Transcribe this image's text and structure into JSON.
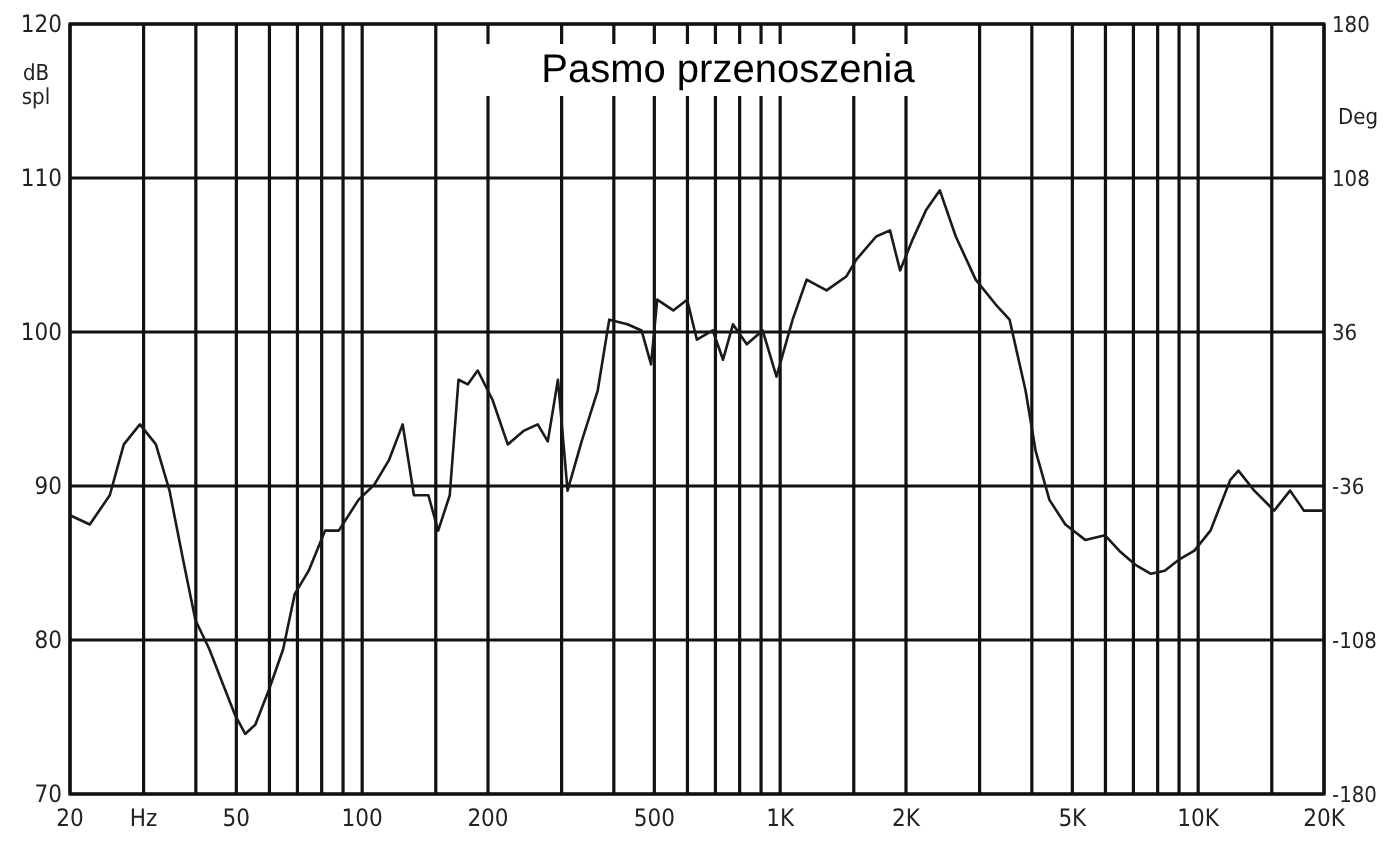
{
  "chart_data": {
    "type": "line",
    "title": "Pasmo przenoszenia",
    "ylabel": "dB spl",
    "y2label": "Deg",
    "log": "x",
    "grid": true,
    "xlim": [
      20,
      20000
    ],
    "ylim": [
      70,
      120
    ],
    "y2lim": [
      -180,
      180
    ],
    "xticks": [
      20,
      {
        "value": 30,
        "label": "Hz"
      },
      {
        "value": 40,
        "label": null
      },
      50,
      {
        "value": 60,
        "label": null
      },
      {
        "value": 70,
        "label": null
      },
      {
        "value": 80,
        "label": null
      },
      {
        "value": 90,
        "label": null
      },
      100,
      {
        "value": 150,
        "label": null
      },
      200,
      {
        "value": 300,
        "label": null
      },
      {
        "value": 400,
        "label": null
      },
      500,
      {
        "value": 600,
        "label": null
      },
      {
        "value": 700,
        "label": null
      },
      {
        "value": 800,
        "label": null
      },
      {
        "value": 900,
        "label": null
      },
      {
        "value": 1000,
        "label": "1K"
      },
      {
        "value": 1500,
        "label": null
      },
      {
        "value": 2000,
        "label": "2K"
      },
      {
        "value": 3000,
        "label": null
      },
      {
        "value": 4000,
        "label": null
      },
      {
        "value": 5000,
        "label": "5K"
      },
      {
        "value": 6000,
        "label": null
      },
      {
        "value": 7000,
        "label": null
      },
      {
        "value": 8000,
        "label": null
      },
      {
        "value": 9000,
        "label": null
      },
      {
        "value": 10000,
        "label": "10K"
      },
      {
        "value": 15000,
        "label": null
      },
      {
        "value": 20000,
        "label": "20K"
      }
    ],
    "yticks": [
      70,
      80,
      90,
      100,
      110,
      120
    ],
    "y2ticks": [
      -180,
      -108,
      -36,
      36,
      108,
      180
    ],
    "series": [
      {
        "color": "#1a1a1a",
        "x": [
          20,
          22.3,
          24.9,
          26.9,
          29.4,
          32.1,
          34.6,
          37.3,
          39.9,
          43.1,
          46.5,
          49.7,
          52.5,
          55.5,
          59.9,
          64.7,
          69,
          74.5,
          81.5,
          87.9,
          98,
          107,
          116,
          125,
          133,
          144,
          152,
          162,
          170,
          179,
          189,
          205,
          223,
          244,
          263,
          278,
          294,
          310,
          335,
          366,
          390,
          431,
          466,
          491,
          508,
          555,
          599,
          632,
          690,
          730,
          771,
          832,
          908,
          980,
          1071,
          1157,
          1291,
          1439,
          1521,
          1697,
          1831,
          1936,
          2066,
          2232,
          2410,
          2631,
          2936,
          3275,
          3539,
          3864,
          4083,
          4407,
          4812,
          5368,
          5988,
          6472,
          7064,
          7709,
          8318,
          8975,
          9795,
          10700,
          11940,
          12480,
          13620,
          15200,
          16590,
          17910,
          20000
        ],
        "values": [
          88.1,
          87.5,
          89.4,
          92.7,
          94,
          92.7,
          89.7,
          85.2,
          81.3,
          79.4,
          77.1,
          75.1,
          73.9,
          74.5,
          76.8,
          79.4,
          83,
          84.5,
          87.1,
          87.1,
          89.1,
          90.1,
          91.7,
          94,
          89.4,
          89.4,
          87.1,
          89.4,
          96.9,
          96.6,
          97.5,
          95.6,
          92.7,
          93.6,
          94,
          92.9,
          96.9,
          89.7,
          92.9,
          96.2,
          100.8,
          100.5,
          100.1,
          97.9,
          102.1,
          101.4,
          102.1,
          99.5,
          100.1,
          98.2,
          100.5,
          99.2,
          100.1,
          97.1,
          100.8,
          103.4,
          102.7,
          103.6,
          104.7,
          106.2,
          106.6,
          104,
          105.9,
          107.9,
          109.2,
          106.2,
          103.4,
          101.8,
          100.8,
          96.2,
          92.3,
          89.1,
          87.5,
          86.5,
          86.8,
          85.8,
          84.9,
          84.3,
          84.5,
          85.2,
          85.8,
          87.1,
          90.4,
          91,
          89.7,
          88.4,
          89.7,
          88.4,
          88.4
        ]
      }
    ]
  }
}
